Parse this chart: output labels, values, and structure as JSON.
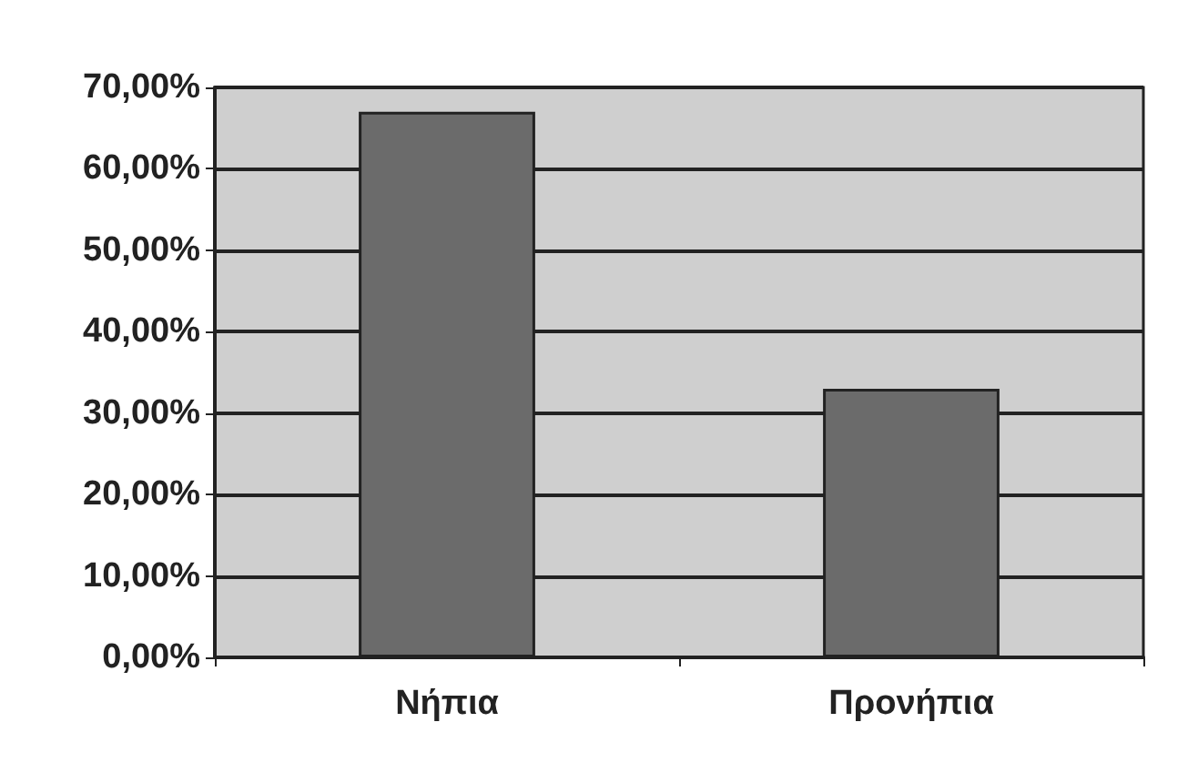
{
  "chart_data": {
    "type": "bar",
    "categories": [
      "Νήπια",
      "Προνήπια"
    ],
    "values": [
      67,
      33
    ],
    "color": "#6b6b6b",
    "ylim": [
      0,
      70
    ],
    "yticks": [
      {
        "value": 0,
        "label": "0,00%"
      },
      {
        "value": 10,
        "label": "10,00%"
      },
      {
        "value": 20,
        "label": "20,00%"
      },
      {
        "value": 30,
        "label": "30,00%"
      },
      {
        "value": 40,
        "label": "40,00%"
      },
      {
        "value": 50,
        "label": "50,00%"
      },
      {
        "value": 60,
        "label": "60,00%"
      },
      {
        "value": 70,
        "label": "70,00%"
      }
    ],
    "grid": "y"
  }
}
